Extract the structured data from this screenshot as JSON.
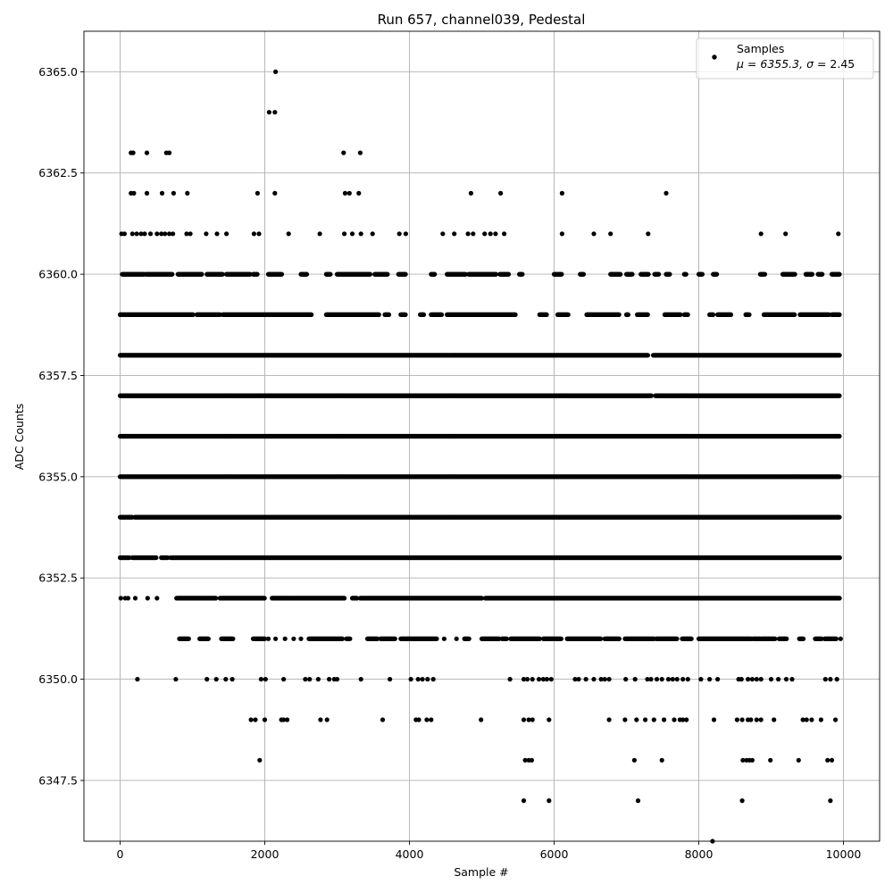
{
  "chart_data": {
    "type": "scatter",
    "title": "Run 657, channel039, Pedestal",
    "xlabel": "Sample #",
    "ylabel": "ADC Counts",
    "xlim": [
      -500,
      10500
    ],
    "ylim": [
      6346,
      6366
    ],
    "xticks": [
      0,
      2000,
      4000,
      6000,
      8000,
      10000
    ],
    "xtick_labels": [
      "0",
      "2000",
      "4000",
      "6000",
      "8000",
      "10000"
    ],
    "yticks": [
      6347.5,
      6350.0,
      6352.5,
      6355.0,
      6357.5,
      6360.0,
      6362.5,
      6365.0
    ],
    "ytick_labels": [
      "6347.5",
      "6350.0",
      "6352.5",
      "6355.0",
      "6357.5",
      "6360.0",
      "6362.5",
      "6365.0"
    ],
    "grid": true,
    "marker_color": "#000000",
    "legend": {
      "placement": "top-right",
      "entries": [
        {
          "label": "Samples",
          "sublabel_prefix": "μ = 6355.3, ",
          "sigma_symbol": "σ",
          "sublabel_suffix": " = 2.45"
        }
      ]
    },
    "series": [
      {
        "name": "Samples",
        "rows": [
          {
            "y": 6365,
            "x": [
              2150
            ]
          },
          {
            "y": 6364,
            "x": [
              2060,
              2140
            ]
          },
          {
            "y": 6363,
            "x": [
              150,
              180,
              370,
              640,
              680,
              3090,
              3320
            ]
          },
          {
            "y": 6362,
            "x": [
              150,
              190,
              370,
              580,
              740,
              930,
              1900,
              2140,
              3110,
              3170,
              3300,
              4850,
              5260,
              6110,
              7550
            ]
          },
          {
            "y": 6361,
            "x": [
              20,
              60,
              170,
              230,
              290,
              340,
              420,
              510,
              570,
              620,
              680,
              730,
              920,
              970,
              1190,
              1340,
              1470,
              1850,
              1920,
              2330,
              2760,
              3100,
              3210,
              3330,
              3490,
              3860,
              3950,
              4460,
              4620,
              4810,
              4880,
              5040,
              5120,
              5190,
              5310,
              6110,
              6550,
              6780,
              7300,
              8860,
              9200,
              9930
            ]
          },
          {
            "y": 6360,
            "x": [
              [
                30,
                340
              ],
              [
                360,
                720
              ],
              [
                800,
                1130
              ],
              [
                1200,
                1420
              ],
              [
                1470,
                1800
              ],
              [
                1840,
                1900
              ],
              [
                2050,
                2240
              ],
              [
                2500,
                2580
              ],
              [
                2850,
                2910
              ],
              [
                3000,
                3460
              ],
              [
                3520,
                3700
              ],
              [
                3850,
                3950
              ],
              [
                4300,
                4350
              ],
              [
                4520,
                4780
              ],
              [
                4820,
                5200
              ],
              [
                5250,
                5370
              ],
              [
                5520,
                5560
              ],
              [
                6000,
                6110
              ],
              [
                6360,
                6410
              ],
              [
                6780,
                6920
              ],
              [
                7000,
                7080
              ],
              [
                7200,
                7310
              ],
              [
                7390,
                7450
              ],
              [
                7550,
                7600
              ],
              [
                7800,
                7830
              ],
              [
                8000,
                8050
              ],
              [
                8200,
                8250
              ],
              [
                8850,
                8920
              ],
              [
                9160,
                9330
              ],
              [
                9480,
                9570
              ],
              [
                9650,
                9710
              ],
              [
                9840,
                9950
              ]
            ]
          },
          {
            "y": 6359,
            "x": [
              [
                0,
                1010
              ],
              [
                1060,
                1380
              ],
              [
                1420,
                2650
              ],
              [
                2850,
                3580
              ],
              [
                3660,
                3720
              ],
              [
                3880,
                3950
              ],
              [
                4150,
                4200
              ],
              [
                4300,
                4450
              ],
              [
                4520,
                5470
              ],
              [
                5800,
                5900
              ],
              [
                6050,
                6200
              ],
              [
                6450,
                6900
              ],
              [
                7000,
                7030
              ],
              [
                7150,
                7300
              ],
              [
                7530,
                7750
              ],
              [
                7800,
                7850
              ],
              [
                8150,
                8200
              ],
              [
                8260,
                8450
              ],
              [
                8650,
                8700
              ],
              [
                8900,
                9330
              ],
              [
                9400,
                9800
              ],
              [
                9840,
                9950
              ]
            ]
          },
          {
            "y": 6358,
            "x": [
              [
                0,
                7300
              ],
              [
                7370,
                9950
              ]
            ]
          },
          {
            "y": 6357,
            "x": [
              [
                0,
                7350
              ],
              [
                7400,
                9950
              ]
            ]
          },
          {
            "y": 6356,
            "x": [
              [
                0,
                9950
              ]
            ]
          },
          {
            "y": 6355,
            "x": [
              [
                0,
                9950
              ]
            ]
          },
          {
            "y": 6354,
            "x": [
              [
                0,
                170
              ],
              [
                200,
                9950
              ]
            ]
          },
          {
            "y": 6353,
            "x": [
              [
                0,
                130
              ],
              [
                170,
                500
              ],
              [
                570,
                660
              ],
              [
                700,
                9950
              ]
            ]
          },
          {
            "y": 6352,
            "x": [
              10,
              70,
              110,
              210,
              380,
              510,
              [
                780,
                1330
              ],
              [
                1380,
                2000
              ],
              [
                2100,
                3100
              ],
              [
                3210,
                3280
              ],
              [
                3320,
                5000
              ],
              [
                5050,
                9950
              ]
            ]
          },
          {
            "y": 6351,
            "x": [
              [
                820,
                950
              ],
              [
                1100,
                1220
              ],
              [
                1400,
                1560
              ],
              [
                1840,
                2000
              ],
              2050,
              2150,
              2280,
              2400,
              2500,
              [
                2610,
                3080
              ],
              [
                3130,
                3180
              ],
              [
                3420,
                3560
              ],
              [
                3600,
                3800
              ],
              [
                3880,
                4380
              ],
              4480,
              4650,
              [
                4760,
                4830
              ],
              [
                5000,
                5240
              ],
              [
                5280,
                5350
              ],
              [
                5400,
                5800
              ],
              [
                5850,
                6100
              ],
              [
                6180,
                6650
              ],
              [
                6700,
                6900
              ],
              [
                6980,
                7380
              ],
              [
                7410,
                7700
              ],
              [
                7770,
                7900
              ],
              [
                8000,
                8730
              ],
              [
                8750,
                8860
              ],
              [
                8870,
                9060
              ],
              [
                9110,
                9220
              ],
              [
                9390,
                9450
              ],
              [
                9610,
                9700
              ],
              [
                9740,
                9900
              ],
              9960
            ]
          },
          {
            "y": 6350,
            "x": [
              240,
              770,
              1200,
              1330,
              1460,
              1550,
              1950,
              2010,
              2260,
              2560,
              2620,
              2740,
              2890,
              2960,
              3000,
              3330,
              3730,
              4020,
              4120,
              4180,
              4250,
              4330,
              5390,
              5580,
              5630,
              5700,
              5790,
              5850,
              5900,
              5960,
              6290,
              6340,
              6440,
              6550,
              6650,
              6700,
              6760,
              6990,
              7120,
              7290,
              7340,
              7420,
              7490,
              7580,
              7640,
              7700,
              7780,
              7850,
              8030,
              8150,
              8260,
              8550,
              8590,
              8680,
              8740,
              8800,
              8860,
              9000,
              9100,
              9210,
              9290,
              9750,
              9820,
              9910
            ]
          },
          {
            "y": 6349,
            "x": [
              1810,
              1870,
              2000,
              2230,
              2260,
              2310,
              2770,
              2860,
              3630,
              4090,
              4130,
              4240,
              4300,
              4990,
              5580,
              5650,
              5700,
              5930,
              6760,
              6980,
              7140,
              7260,
              7380,
              7520,
              7660,
              7740,
              7780,
              7830,
              8210,
              8530,
              8600,
              8680,
              8720,
              8800,
              8860,
              9040,
              9440,
              9490,
              9560,
              9690,
              9890
            ]
          },
          {
            "y": 6348,
            "x": [
              1930,
              5600,
              5650,
              5690,
              7110,
              7490,
              8610,
              8660,
              8700,
              8740,
              8990,
              9380,
              9780,
              9840
            ]
          },
          {
            "y": 6347,
            "x": [
              5580,
              5930,
              7160,
              8600,
              9820
            ]
          },
          {
            "y": 6346,
            "x": [
              8190
            ]
          }
        ]
      }
    ]
  }
}
